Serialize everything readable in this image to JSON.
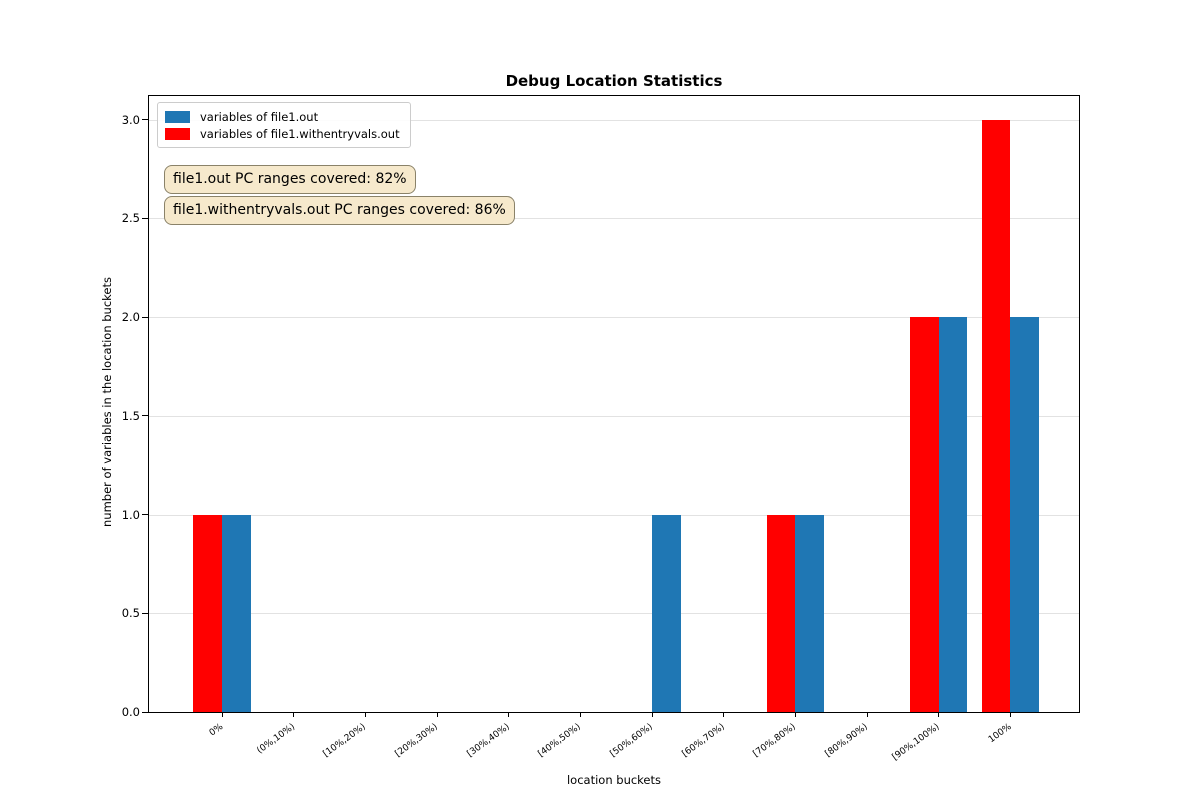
{
  "chart_data": {
    "type": "bar",
    "title": "Debug Location Statistics",
    "xlabel": "location buckets",
    "ylabel": "number of variables in the location buckets",
    "categories": [
      "0%",
      "(0%,10%)",
      "[10%,20%)",
      "[20%,30%)",
      "[30%,40%)",
      "[40%,50%)",
      "[50%,60%)",
      "[60%,70%)",
      "[70%,80%)",
      "[80%,90%)",
      "[90%,100%)",
      "100%"
    ],
    "series": [
      {
        "name": "variables of file1.out",
        "color": "#1f77b4",
        "side": "right",
        "values": [
          1,
          0,
          0,
          0,
          0,
          0,
          1,
          0,
          1,
          0,
          2,
          2
        ]
      },
      {
        "name": "variables of file1.withentryvals.out",
        "color": "#ff0000",
        "side": "left",
        "values": [
          1,
          0,
          0,
          0,
          0,
          0,
          0,
          0,
          1,
          0,
          2,
          3
        ]
      }
    ],
    "yticks": [
      0.0,
      0.5,
      1.0,
      1.5,
      2.0,
      2.5,
      3.0
    ],
    "ylim": [
      0,
      3.12
    ],
    "grid": "horizontal-only",
    "legend_position": "upper-left",
    "annotations": [
      "file1.out PC ranges covered: 82%",
      "file1.withentryvals.out PC ranges covered: 86%"
    ],
    "annotation_style": {
      "fill": "#f6e9cc",
      "border": "#8a8269"
    }
  }
}
